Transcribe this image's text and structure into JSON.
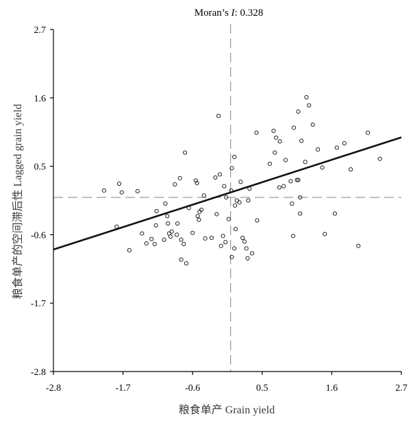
{
  "chart_data": {
    "type": "scatter",
    "title_prefix": "Moran’s ",
    "title_italic": "I",
    "title_suffix": ":  0.328",
    "xlabel": "粮食单产 Grain yield",
    "ylabel": "粮食单产的空间滞后性 Lagged grain yield",
    "xlim": [
      -2.8,
      2.7
    ],
    "ylim": [
      -2.8,
      2.7
    ],
    "xticks": [
      -2.8,
      -1.7,
      -0.6,
      0.5,
      1.6,
      2.7
    ],
    "yticks": [
      -2.8,
      -1.7,
      -0.6,
      0.5,
      1.6,
      2.7
    ],
    "reference_lines": {
      "x": 0.0,
      "y": 0.0
    },
    "fit_line": {
      "slope": 0.328,
      "intercept": 0.08
    },
    "grid": false,
    "points": [
      [
        -2.0,
        0.11
      ],
      [
        -1.76,
        0.22
      ],
      [
        -1.72,
        0.08
      ],
      [
        -1.8,
        -0.47
      ],
      [
        -1.6,
        -0.85
      ],
      [
        -1.47,
        0.1
      ],
      [
        -1.4,
        -0.58
      ],
      [
        -1.33,
        -0.74
      ],
      [
        -1.25,
        -0.67
      ],
      [
        -1.2,
        -0.75
      ],
      [
        -1.18,
        -0.45
      ],
      [
        -1.17,
        -0.22
      ],
      [
        -1.05,
        -0.68
      ],
      [
        -1.03,
        -0.1
      ],
      [
        -1.0,
        -0.3
      ],
      [
        -0.97,
        -0.58
      ],
      [
        -0.95,
        -0.63
      ],
      [
        -0.93,
        -0.55
      ],
      [
        -0.88,
        0.21
      ],
      [
        -0.85,
        -0.6
      ],
      [
        -0.84,
        -0.42
      ],
      [
        -0.8,
        0.31
      ],
      [
        -0.78,
        -0.68
      ],
      [
        -0.74,
        -0.75
      ],
      [
        -0.72,
        0.72
      ],
      [
        -0.7,
        -1.06
      ],
      [
        -0.66,
        -0.17
      ],
      [
        -0.6,
        -0.57
      ],
      [
        -0.55,
        0.27
      ],
      [
        -0.53,
        0.23
      ],
      [
        -0.52,
        -0.3
      ],
      [
        -0.5,
        -0.36
      ],
      [
        -0.49,
        -0.23
      ],
      [
        -0.46,
        -0.2
      ],
      [
        -0.42,
        0.03
      ],
      [
        -0.4,
        -0.66
      ],
      [
        -0.3,
        -0.65
      ],
      [
        -0.24,
        0.32
      ],
      [
        -0.22,
        -0.27
      ],
      [
        -0.19,
        1.31
      ],
      [
        -0.17,
        0.37
      ],
      [
        -0.1,
        0.18
      ],
      [
        -0.12,
        -0.62
      ],
      [
        -0.07,
        0.0
      ],
      [
        -0.03,
        -0.35
      ],
      [
        0.01,
        0.11
      ],
      [
        0.02,
        0.47
      ],
      [
        0.06,
        0.65
      ],
      [
        0.07,
        -0.13
      ],
      [
        0.08,
        -0.51
      ],
      [
        0.1,
        -0.05
      ],
      [
        0.14,
        -0.08
      ],
      [
        0.16,
        0.25
      ],
      [
        0.19,
        -0.65
      ],
      [
        0.22,
        -0.71
      ],
      [
        0.25,
        -0.82
      ],
      [
        0.27,
        -0.98
      ],
      [
        0.3,
        0.14
      ],
      [
        0.34,
        -0.9
      ],
      [
        0.42,
        -0.37
      ],
      [
        0.41,
        1.04
      ],
      [
        0.62,
        0.54
      ],
      [
        0.68,
        1.07
      ],
      [
        0.7,
        0.72
      ],
      [
        0.72,
        0.96
      ],
      [
        0.77,
        0.16
      ],
      [
        0.78,
        0.9
      ],
      [
        0.84,
        0.18
      ],
      [
        0.87,
        0.6
      ],
      [
        0.95,
        0.26
      ],
      [
        0.97,
        -0.1
      ],
      [
        0.99,
        -0.62
      ],
      [
        1.0,
        1.12
      ],
      [
        1.05,
        0.28
      ],
      [
        1.07,
        1.38
      ],
      [
        1.1,
        0.0
      ],
      [
        1.12,
        0.91
      ],
      [
        1.18,
        0.57
      ],
      [
        1.2,
        1.61
      ],
      [
        1.24,
        1.48
      ],
      [
        1.3,
        1.17
      ],
      [
        1.38,
        0.77
      ],
      [
        1.45,
        0.48
      ],
      [
        1.49,
        -0.59
      ],
      [
        1.65,
        -0.26
      ],
      [
        1.68,
        0.8
      ],
      [
        1.8,
        0.87
      ],
      [
        1.9,
        0.45
      ],
      [
        2.02,
        -0.78
      ],
      [
        2.17,
        1.04
      ],
      [
        2.36,
        0.62
      ],
      [
        1.07,
        0.28
      ],
      [
        0.28,
        -0.05
      ],
      [
        0.06,
        -0.82
      ],
      [
        -0.08,
        -0.72
      ],
      [
        -0.15,
        -0.78
      ],
      [
        -0.78,
        -1.0
      ],
      [
        -0.99,
        -0.42
      ],
      [
        1.1,
        -0.26
      ],
      [
        0.02,
        -0.96
      ]
    ]
  }
}
